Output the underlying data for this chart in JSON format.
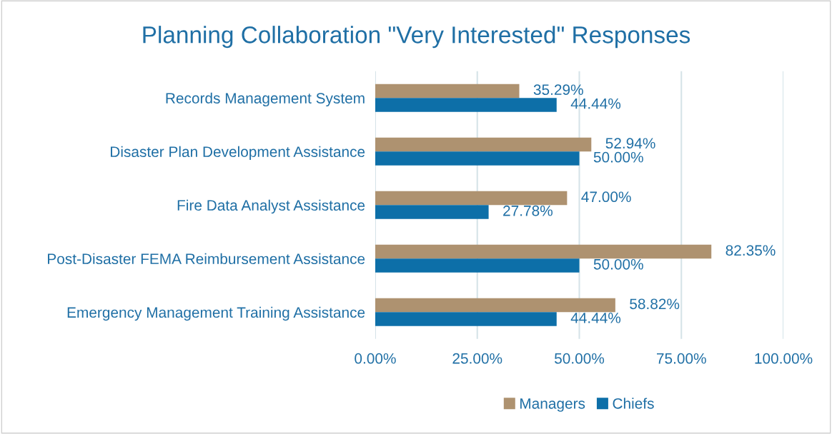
{
  "chart_data": {
    "type": "bar",
    "orientation": "horizontal",
    "title": "Planning Collaboration \"Very Interested\" Responses",
    "categories": [
      "Records Management System",
      "Disaster Plan Development Assistance",
      "Fire Data Analyst Assistance",
      "Post-Disaster FEMA Reimbursement Assistance",
      "Emergency Management Training Assistance"
    ],
    "series": [
      {
        "name": "Managers",
        "color": "#ae9270",
        "values": [
          35.29,
          52.94,
          47.0,
          82.35,
          58.82
        ],
        "value_labels": [
          "35.29%",
          "52.94%",
          "47.00%",
          "82.35%",
          "58.82%"
        ]
      },
      {
        "name": "Chiefs",
        "color": "#0d6fa8",
        "values": [
          44.44,
          50.0,
          27.78,
          50.0,
          44.44
        ],
        "value_labels": [
          "44.44%",
          "50.00%",
          "27.78%",
          "50.00%",
          "44.44%"
        ]
      }
    ],
    "xlim": [
      0,
      100
    ],
    "xticks": [
      {
        "value": 0,
        "label": "0.00%"
      },
      {
        "value": 25,
        "label": "25.00%"
      },
      {
        "value": 50,
        "label": "50.00%"
      },
      {
        "value": 75,
        "label": "75.00%"
      },
      {
        "value": 100,
        "label": "100.00%"
      }
    ],
    "grid": "x",
    "legend": "bottom"
  }
}
